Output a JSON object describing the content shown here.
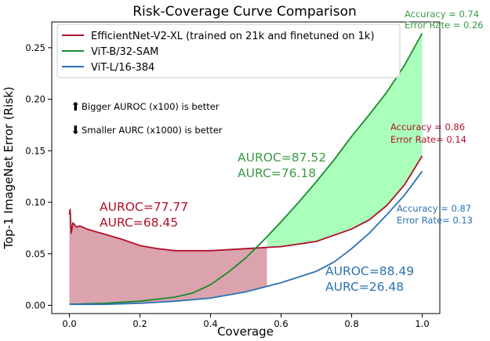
{
  "chart_data": {
    "type": "line",
    "title": "Risk-Coverage Curve Comparison",
    "xlabel": "Coverage",
    "ylabel": "Top-1 ImageNet Error (Risk)",
    "xlim": [
      -0.05,
      1.05
    ],
    "ylim": [
      -0.008,
      0.275
    ],
    "xticks": [
      "0.0",
      "0.2",
      "0.4",
      "0.6",
      "0.8",
      "1.0"
    ],
    "yticks": [
      "0.00",
      "0.05",
      "0.10",
      "0.15",
      "0.20",
      "0.25"
    ],
    "legend_position": "top-left",
    "series": [
      {
        "name": "EfficientNet-V2-XL (trained on 21k and finetuned on 1k)",
        "color": "#b0102a",
        "points": [
          [
            0.0,
            0.088
          ],
          [
            0.002,
            0.093
          ],
          [
            0.005,
            0.07
          ],
          [
            0.01,
            0.08
          ],
          [
            0.02,
            0.076
          ],
          [
            0.03,
            0.077
          ],
          [
            0.05,
            0.074
          ],
          [
            0.08,
            0.071
          ],
          [
            0.1,
            0.069
          ],
          [
            0.15,
            0.064
          ],
          [
            0.2,
            0.058
          ],
          [
            0.25,
            0.055
          ],
          [
            0.3,
            0.053
          ],
          [
            0.4,
            0.053
          ],
          [
            0.5,
            0.055
          ],
          [
            0.6,
            0.057
          ],
          [
            0.7,
            0.062
          ],
          [
            0.8,
            0.074
          ],
          [
            0.85,
            0.083
          ],
          [
            0.9,
            0.097
          ],
          [
            0.95,
            0.117
          ],
          [
            1.0,
            0.145
          ]
        ]
      },
      {
        "name": "ViT-B/32-SAM",
        "color": "#1a8a2e",
        "points": [
          [
            0.0,
            0.001
          ],
          [
            0.1,
            0.002
          ],
          [
            0.2,
            0.004
          ],
          [
            0.3,
            0.008
          ],
          [
            0.35,
            0.012
          ],
          [
            0.4,
            0.02
          ],
          [
            0.45,
            0.032
          ],
          [
            0.5,
            0.046
          ],
          [
            0.55,
            0.063
          ],
          [
            0.6,
            0.081
          ],
          [
            0.65,
            0.1
          ],
          [
            0.7,
            0.12
          ],
          [
            0.75,
            0.141
          ],
          [
            0.8,
            0.164
          ],
          [
            0.85,
            0.185
          ],
          [
            0.9,
            0.207
          ],
          [
            0.95,
            0.233
          ],
          [
            1.0,
            0.264
          ]
        ]
      },
      {
        "name": "ViT-L/16-384",
        "color": "#2a72b5",
        "points": [
          [
            0.0,
            0.001
          ],
          [
            0.1,
            0.001
          ],
          [
            0.2,
            0.002
          ],
          [
            0.3,
            0.004
          ],
          [
            0.4,
            0.007
          ],
          [
            0.5,
            0.013
          ],
          [
            0.6,
            0.022
          ],
          [
            0.7,
            0.033
          ],
          [
            0.75,
            0.042
          ],
          [
            0.8,
            0.055
          ],
          [
            0.85,
            0.07
          ],
          [
            0.9,
            0.088
          ],
          [
            0.95,
            0.107
          ],
          [
            1.0,
            0.13
          ]
        ]
      }
    ],
    "fills": [
      {
        "between": [
          0,
          2
        ],
        "x_range": [
          0.0,
          0.56
        ],
        "color": "#dba3ad"
      },
      {
        "between": [
          0,
          1
        ],
        "x_range": [
          0.56,
          1.0
        ],
        "color": "#aaffbb"
      }
    ],
    "annotations": [
      {
        "lines": [
          "AUROC=77.77",
          "AURC=68.45"
        ],
        "color": "#b0102a"
      },
      {
        "lines": [
          "AUROC=87.52",
          "AURC=76.18"
        ],
        "color": "#3a9a44"
      },
      {
        "lines": [
          "AUROC=88.49",
          "AURC=26.48"
        ],
        "color": "#2a72b5"
      },
      {
        "lines": [
          "Accuracy = 0.74",
          "Error Rate = 0.26"
        ],
        "color": "#3a9a44"
      },
      {
        "lines": [
          "Accuracy = 0.86",
          "Error Rate= 0.14"
        ],
        "color": "#b0102a"
      },
      {
        "lines": [
          "Accuracy = 0.87",
          "Error Rate= 0.13"
        ],
        "color": "#2a72b5"
      }
    ],
    "notes": [
      {
        "arrow": "up",
        "text": "Bigger AUROC (x100) is better"
      },
      {
        "arrow": "down",
        "text": "Smaller AURC (x1000) is better"
      }
    ]
  }
}
